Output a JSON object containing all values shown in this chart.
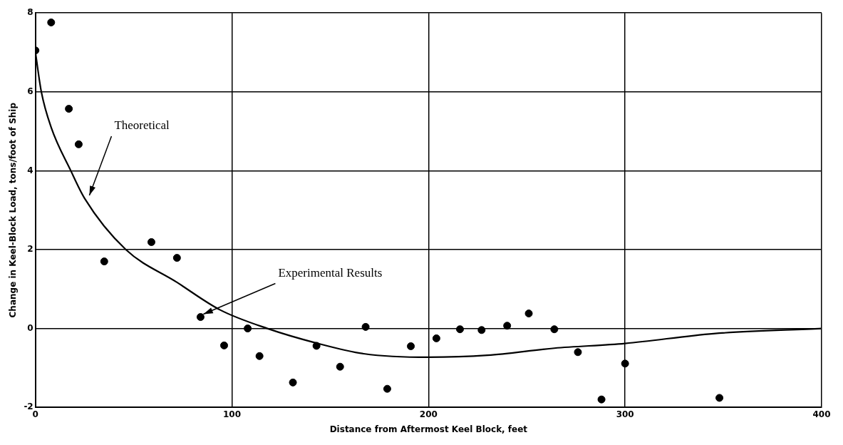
{
  "chart_data": {
    "type": "scatter",
    "xlabel": "Distance from Aftermost Keel Block, feet",
    "ylabel": "Change in Keel-Block Load, tons/foot of Ship",
    "xlim": [
      0,
      400
    ],
    "xticks": [
      0,
      100,
      200,
      300,
      400
    ],
    "ylim": [
      -2,
      8
    ],
    "yticks": [
      -2,
      0,
      2,
      4,
      6,
      8
    ],
    "grid": true,
    "legend": false,
    "marker": "circle",
    "series": [
      {
        "color": "#000000",
        "x": [
          0,
          8,
          17,
          22,
          35,
          59,
          72,
          84,
          96,
          108,
          114,
          131,
          143,
          155,
          168,
          179,
          191,
          204,
          216,
          227,
          240,
          251,
          264,
          276,
          288,
          300,
          348
        ],
        "values": [
          7.05,
          7.76,
          5.57,
          4.67,
          1.7,
          2.19,
          1.79,
          0.29,
          -0.43,
          0,
          -0.7,
          -1.37,
          -0.44,
          -0.97,
          0.04,
          -1.53,
          -0.45,
          -0.25,
          -0.02,
          -0.04,
          0.07,
          0.38,
          -0.02,
          -0.6,
          -1.8,
          -0.89,
          -1.76
        ]
      },
      {
        "type": "line",
        "color": "#000000",
        "marker": "none",
        "line_style": "solid",
        "x": [
          0,
          3,
          8,
          18,
          25,
          46,
          72,
          94,
          118,
          143,
          167,
          200,
          230,
          264,
          300,
          345,
          400
        ],
        "values": [
          7.0,
          6.0,
          5.1,
          4.0,
          3.3,
          2.0,
          1.17,
          0.47,
          0,
          -0.37,
          -0.64,
          -0.73,
          -0.68,
          -0.5,
          -0.38,
          -0.13,
          0
        ]
      }
    ],
    "annotations": [
      {
        "text": "Theoretical",
        "x": 26,
        "y": 3.3
      },
      {
        "text": "Experimental Results",
        "x": 84,
        "y": 0.29
      }
    ]
  }
}
